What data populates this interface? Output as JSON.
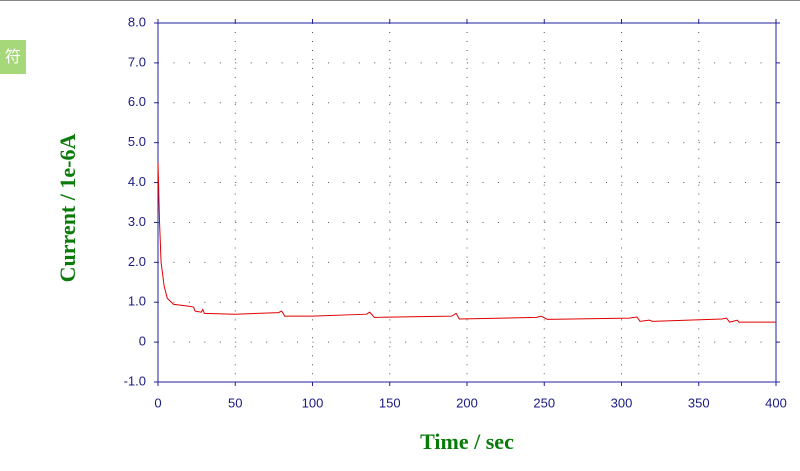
{
  "badge": "符",
  "chart_data": {
    "type": "line",
    "xlabel": "Time / sec",
    "ylabel": "Current / 1e-6A",
    "xlim": [
      0,
      400
    ],
    "ylim": [
      -1,
      8
    ],
    "xticks": [
      0,
      50,
      100,
      150,
      200,
      250,
      300,
      350,
      400
    ],
    "yticks": [
      {
        "value": 8,
        "label": "8.0"
      },
      {
        "value": 7,
        "label": "7.0"
      },
      {
        "value": 6,
        "label": "6.0"
      },
      {
        "value": 5,
        "label": "5.0"
      },
      {
        "value": 4,
        "label": "4.0"
      },
      {
        "value": 3,
        "label": "3.0"
      },
      {
        "value": 2,
        "label": "2.0"
      },
      {
        "value": 1,
        "label": "1.0"
      },
      0,
      {
        "value": -1,
        "label": "-1.0"
      }
    ],
    "grid": true,
    "series": [
      {
        "color": "#e00000",
        "x": [
          0,
          1,
          2,
          4,
          6,
          10,
          20,
          23,
          24,
          28,
          29,
          30,
          50,
          78,
          80,
          82,
          100,
          135,
          137,
          140,
          190,
          193,
          195,
          245,
          248,
          252,
          305,
          310,
          312,
          318,
          320,
          365,
          368,
          370,
          375,
          376,
          400
        ],
        "values": [
          4.5,
          3.0,
          2.0,
          1.4,
          1.1,
          0.95,
          0.9,
          0.88,
          0.78,
          0.75,
          0.82,
          0.72,
          0.7,
          0.74,
          0.78,
          0.65,
          0.65,
          0.7,
          0.75,
          0.62,
          0.65,
          0.72,
          0.58,
          0.62,
          0.65,
          0.57,
          0.6,
          0.63,
          0.52,
          0.55,
          0.52,
          0.58,
          0.6,
          0.5,
          0.55,
          0.5,
          0.5
        ]
      }
    ]
  }
}
